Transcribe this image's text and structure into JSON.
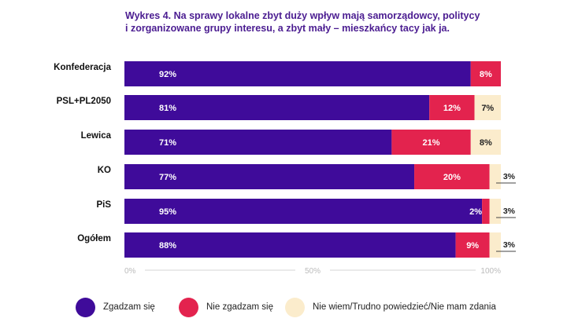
{
  "title_lines": [
    "Wykres 4. Na sprawy lokalne zbyt duży wpływ mają samorządowcy, politycy",
    "i zorganizowane grupy interesu, a zbyt mały – mieszkańcy tacy jak ja."
  ],
  "chart_data": {
    "type": "bar",
    "orientation": "horizontal",
    "stacked": true,
    "title": "Wykres 4. Na sprawy lokalne zbyt duży wpływ mają samorządowcy, politycy i zorganizowane grupy interesu, a zbyt mały – mieszkańcy tacy jak ja.",
    "categories": [
      "Konfederacja",
      "PSL+PL2050",
      "Lewica",
      "KO",
      "PiS",
      "Ogółem"
    ],
    "series": [
      {
        "name": "Zgadzam się",
        "color": "#3f0b9a",
        "values": [
          92,
          81,
          71,
          77,
          95,
          88
        ],
        "labels": [
          "92%",
          "81%",
          "71%",
          "77%",
          "95%",
          "88%"
        ]
      },
      {
        "name": "Nie zgadzam się",
        "color": "#e3234e",
        "values": [
          8,
          12,
          21,
          20,
          2,
          9
        ],
        "labels": [
          "8%",
          "12%",
          "21%",
          "20%",
          "2%",
          "9%"
        ]
      },
      {
        "name": "Nie wiem/Trudno powiedzieć/Nie mam zdania",
        "color": "#fbeccc",
        "values": [
          0,
          7,
          8,
          3,
          3,
          3
        ],
        "labels": [
          "",
          "7%",
          "8%",
          "3%",
          "3%",
          "3%"
        ]
      }
    ],
    "x_axis": {
      "min": 0,
      "max": 100,
      "ticks": [
        0,
        50,
        100
      ],
      "tick_labels": [
        "0%",
        "50%",
        "100%"
      ]
    },
    "legend_position": "bottom"
  }
}
